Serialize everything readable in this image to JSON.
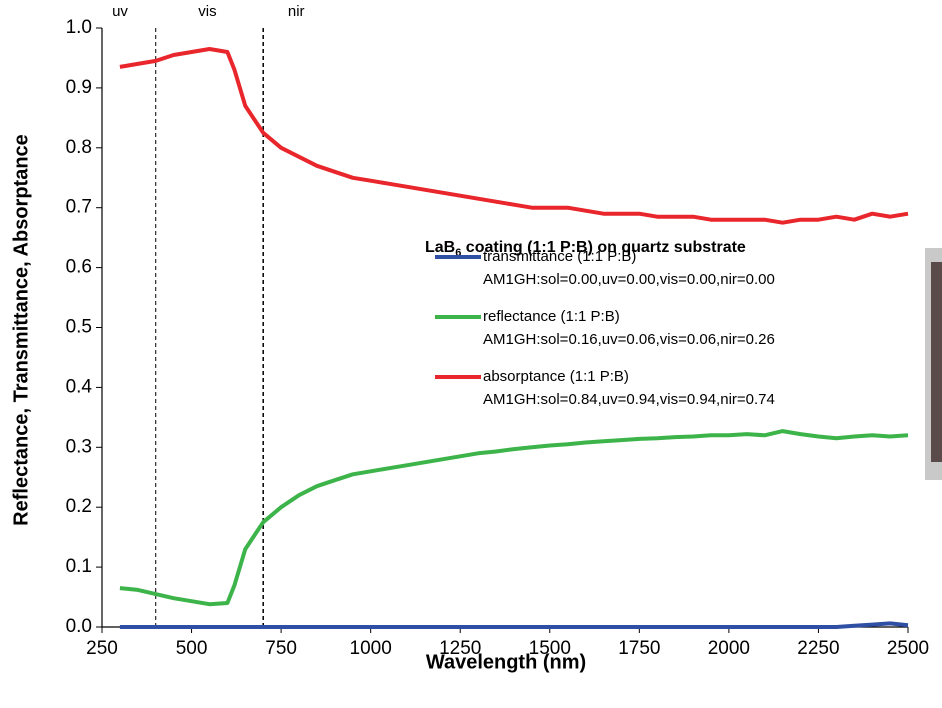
{
  "chart_data": {
    "type": "line",
    "legend_title": [
      "LaB",
      "6",
      " coating (1:1 P:B) on quartz substrate"
    ],
    "xlabel": "Wavelength (nm)",
    "ylabel": "Reflectance, Transmittance, Absorptance",
    "region_labels": [
      "uv",
      "vis",
      "nir"
    ],
    "region_bounds": [
      400,
      700
    ],
    "x": [
      300,
      350,
      400,
      450,
      500,
      550,
      600,
      620,
      650,
      700,
      750,
      800,
      850,
      900,
      950,
      1000,
      1050,
      1100,
      1150,
      1200,
      1250,
      1300,
      1350,
      1400,
      1450,
      1500,
      1550,
      1600,
      1650,
      1700,
      1750,
      1800,
      1850,
      1900,
      1950,
      2000,
      2050,
      2100,
      2150,
      2200,
      2250,
      2300,
      2350,
      2400,
      2450,
      2500
    ],
    "series": [
      {
        "name": "transmittance (1:1 P:B)",
        "note": "AM1GH:sol=0.00,uv=0.00,vis=0.00,nir=0.00",
        "color": "#2e4fa3",
        "values": [
          0,
          0,
          0,
          0,
          0,
          0,
          0,
          0,
          0,
          0,
          0,
          0,
          0,
          0,
          0,
          0,
          0,
          0,
          0,
          0,
          0,
          0,
          0,
          0,
          0,
          0,
          0,
          0,
          0,
          0,
          0,
          0,
          0,
          0,
          0,
          0,
          0,
          0,
          0,
          0,
          0,
          0,
          0.002,
          0.004,
          0.006,
          0.003
        ]
      },
      {
        "name": "reflectance (1:1 P:B)",
        "note": "AM1GH:sol=0.16,uv=0.06,vis=0.06,nir=0.26",
        "color": "#3cb44a",
        "values": [
          0.065,
          0.062,
          0.055,
          0.048,
          0.043,
          0.038,
          0.04,
          0.07,
          0.13,
          0.175,
          0.2,
          0.22,
          0.235,
          0.245,
          0.255,
          0.26,
          0.265,
          0.27,
          0.275,
          0.28,
          0.285,
          0.29,
          0.293,
          0.297,
          0.3,
          0.303,
          0.305,
          0.308,
          0.31,
          0.312,
          0.314,
          0.315,
          0.317,
          0.318,
          0.32,
          0.32,
          0.322,
          0.32,
          0.327,
          0.322,
          0.318,
          0.315,
          0.318,
          0.32,
          0.318,
          0.32
        ]
      },
      {
        "name": "absorptance (1:1 P:B)",
        "note": "AM1GH:sol=0.84,uv=0.94,vis=0.94,nir=0.74",
        "color": "#e8262b",
        "values": [
          0.935,
          0.94,
          0.945,
          0.955,
          0.96,
          0.965,
          0.96,
          0.93,
          0.87,
          0.825,
          0.8,
          0.785,
          0.77,
          0.76,
          0.75,
          0.745,
          0.74,
          0.735,
          0.73,
          0.725,
          0.72,
          0.715,
          0.71,
          0.705,
          0.7,
          0.7,
          0.7,
          0.695,
          0.69,
          0.69,
          0.69,
          0.685,
          0.685,
          0.685,
          0.68,
          0.68,
          0.68,
          0.68,
          0.675,
          0.68,
          0.68,
          0.685,
          0.68,
          0.69,
          0.685,
          0.69
        ]
      }
    ],
    "xlim": [
      250,
      2500
    ],
    "xticks": [
      250,
      500,
      750,
      1000,
      1250,
      1500,
      1750,
      2000,
      2250,
      2500
    ],
    "ylim": [
      0,
      1
    ],
    "yticks": [
      {
        "value": 0,
        "label": "0.0"
      },
      0.1,
      0.2,
      0.3,
      0.4,
      0.5,
      0.6,
      0.7,
      0.8,
      0.9,
      {
        "value": 1,
        "label": "1.0"
      }
    ]
  }
}
